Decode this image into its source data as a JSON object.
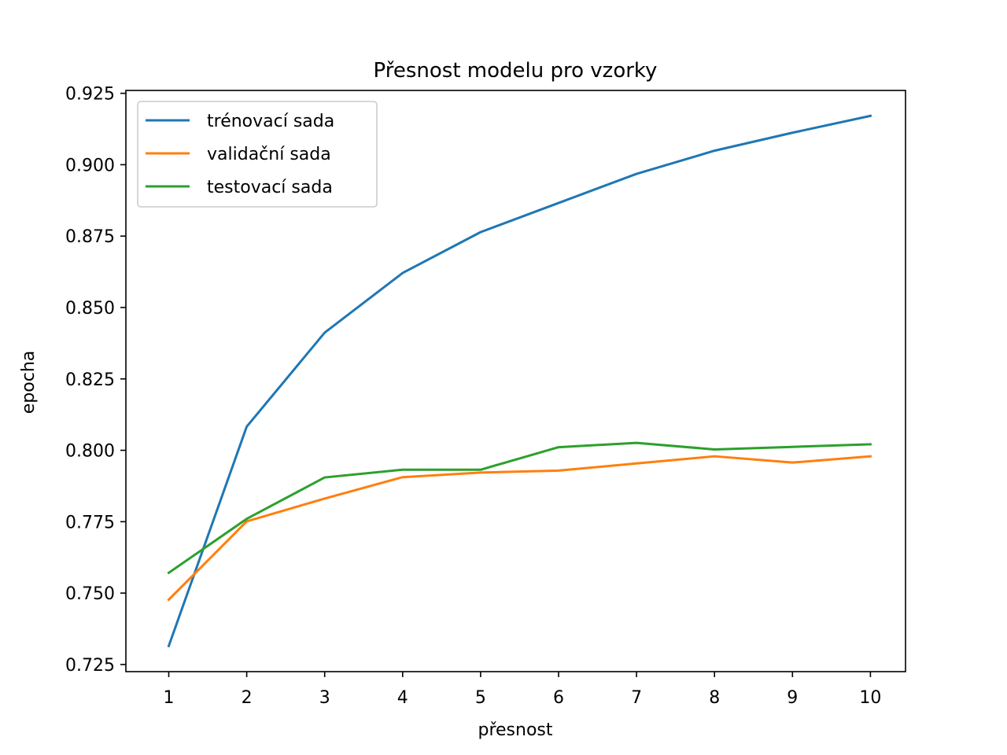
{
  "chart_data": {
    "type": "line",
    "title": "Přesnost modelu pro vzorky",
    "xlabel": "přesnost",
    "ylabel": "epocha",
    "x": [
      1,
      2,
      3,
      4,
      5,
      6,
      7,
      8,
      9,
      10
    ],
    "xlim": [
      0.45,
      10.45
    ],
    "ylim": [
      0.7225,
      0.926
    ],
    "xticks": [
      1,
      2,
      3,
      4,
      5,
      6,
      7,
      8,
      9,
      10
    ],
    "yticks": [
      0.725,
      0.75,
      0.775,
      0.8,
      0.825,
      0.85,
      0.875,
      0.9,
      0.925
    ],
    "ytick_labels": [
      "0.725",
      "0.750",
      "0.775",
      "0.800",
      "0.825",
      "0.850",
      "0.875",
      "0.900",
      "0.925"
    ],
    "grid": false,
    "legend_position": "top-left",
    "series": [
      {
        "name": "trénovací sada",
        "color": "#1f77b4",
        "values": [
          0.7315,
          0.8083,
          0.8412,
          0.8621,
          0.8764,
          0.8866,
          0.8968,
          0.9049,
          0.9112,
          0.9171
        ]
      },
      {
        "name": "validační sada",
        "color": "#ff7f0e",
        "values": [
          0.7477,
          0.7751,
          0.7831,
          0.7906,
          0.7922,
          0.7929,
          0.7954,
          0.7979,
          0.7957,
          0.7979
        ]
      },
      {
        "name": "testovací sada",
        "color": "#2ca02c",
        "values": [
          0.7571,
          0.776,
          0.7905,
          0.7932,
          0.7932,
          0.8011,
          0.8026,
          0.8003,
          0.8012,
          0.8021
        ]
      }
    ]
  }
}
